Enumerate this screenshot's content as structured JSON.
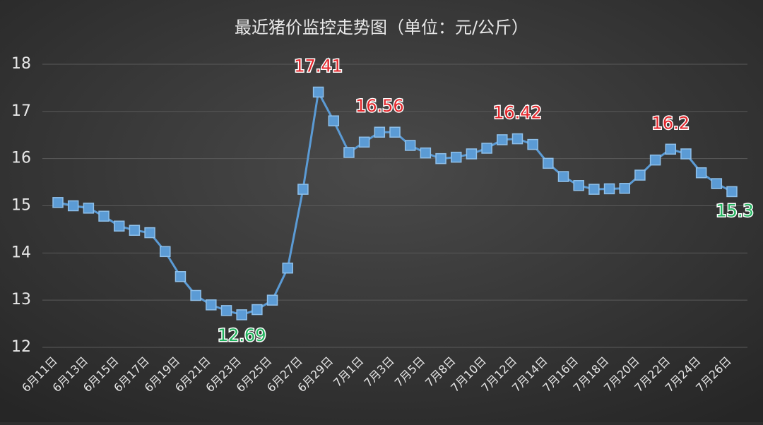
{
  "chart_data": {
    "type": "line",
    "title": "最近猪价监控走势图（单位：元/公斤）",
    "categories": [
      "6月11日",
      null,
      "6月13日",
      null,
      "6月15日",
      null,
      "6月17日",
      null,
      "6月19日",
      null,
      "6月21日",
      null,
      "6月23日",
      null,
      "6月25日",
      null,
      "6月27日",
      null,
      "6月29日",
      null,
      "7月1日",
      null,
      "7月3日",
      null,
      "7月5日",
      null,
      "7月8日",
      null,
      "7月10日",
      null,
      "7月12日",
      null,
      "7月14日",
      null,
      "7月16日",
      null,
      "7月18日",
      null,
      "7月20日",
      null,
      "7月22日",
      null,
      "7月24日",
      null,
      "7月26日"
    ],
    "series": [
      {
        "name": "猪价",
        "color": "#5b9bd5",
        "values": [
          15.07,
          15.0,
          14.95,
          14.78,
          14.57,
          14.48,
          14.43,
          14.03,
          13.5,
          13.1,
          12.9,
          12.78,
          12.69,
          12.8,
          13.0,
          13.68,
          15.35,
          17.41,
          16.8,
          16.13,
          16.35,
          16.56,
          16.56,
          16.28,
          16.12,
          16.0,
          16.03,
          16.1,
          16.22,
          16.4,
          16.42,
          16.3,
          15.9,
          15.62,
          15.43,
          15.35,
          15.36,
          15.37,
          15.65,
          15.97,
          16.2,
          16.1,
          15.7,
          15.47,
          15.3
        ],
        "value_labels": [
          null,
          null,
          null,
          null,
          null,
          null,
          null,
          null,
          null,
          null,
          null,
          null,
          "12.69",
          null,
          null,
          null,
          null,
          "17.41",
          null,
          null,
          null,
          "16.56",
          null,
          null,
          null,
          null,
          null,
          null,
          null,
          null,
          "16.42",
          null,
          null,
          null,
          null,
          null,
          null,
          null,
          null,
          null,
          "16.2",
          null,
          null,
          null,
          "15.3"
        ],
        "value_label_colors": [
          null,
          null,
          null,
          null,
          null,
          null,
          null,
          null,
          null,
          null,
          null,
          null,
          "#22b35e",
          null,
          null,
          null,
          null,
          "#e3262b",
          null,
          null,
          null,
          "#e3262b",
          null,
          null,
          null,
          null,
          null,
          null,
          null,
          null,
          "#e3262b",
          null,
          null,
          null,
          null,
          null,
          null,
          null,
          null,
          null,
          "#e3262b",
          null,
          null,
          null,
          "#22b35e"
        ]
      }
    ],
    "ylim": [
      12,
      18
    ],
    "yticks": [
      12,
      13,
      14,
      15,
      16,
      17,
      18
    ],
    "grid": true
  }
}
